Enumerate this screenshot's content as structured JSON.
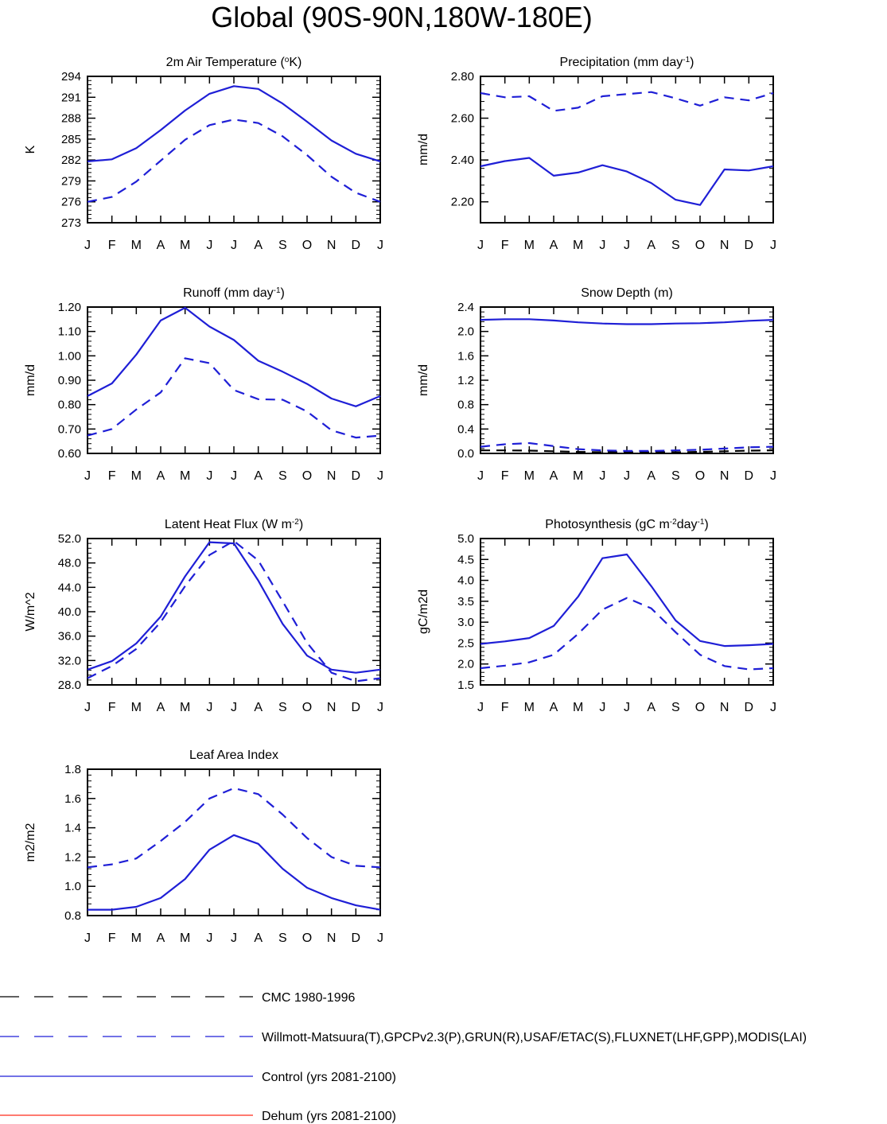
{
  "page_title": "Global (90S-90N,180W-180E)",
  "colors": {
    "series_cmc": "#000000",
    "series_obs": "#1f1fd6",
    "series_control": "#1f1fd6",
    "series_dehum": "#ff2a1a"
  },
  "chart_data": [
    {
      "type": "line",
      "title": "2m Air Temperature (",
      "title_sup": "o",
      "title_suffix": "K)",
      "ylabel": "K",
      "ylim": [
        273,
        294
      ],
      "yticks": [
        273,
        276,
        279,
        282,
        285,
        288,
        291,
        294
      ],
      "ytick_labels": [
        "273",
        "276",
        "279",
        "282",
        "285",
        "288",
        "291",
        "294"
      ],
      "x_labels": [
        "J",
        "F",
        "M",
        "A",
        "M",
        "J",
        "J",
        "A",
        "S",
        "O",
        "N",
        "D",
        "J"
      ],
      "series": [
        {
          "key": "obs",
          "values": [
            276.0,
            276.7,
            278.9,
            281.9,
            284.9,
            287.0,
            287.8,
            287.3,
            285.4,
            282.7,
            279.6,
            277.3,
            276.0
          ]
        },
        {
          "key": "control",
          "values": [
            281.8,
            282.1,
            283.7,
            286.3,
            289.1,
            291.5,
            292.6,
            292.2,
            290.1,
            287.5,
            284.8,
            282.9,
            281.8
          ]
        }
      ]
    },
    {
      "type": "line",
      "title": "Precipitation (mm day",
      "title_sup": "-1",
      "title_suffix": ")",
      "ylabel": "mm/d",
      "ylim": [
        2.1,
        2.8
      ],
      "yticks": [
        2.2,
        2.4,
        2.6,
        2.8
      ],
      "ytick_labels": [
        "2.20",
        "2.40",
        "2.60",
        "2.80"
      ],
      "x_labels": [
        "J",
        "F",
        "M",
        "A",
        "M",
        "J",
        "J",
        "A",
        "S",
        "O",
        "N",
        "D",
        "J"
      ],
      "series": [
        {
          "key": "obs",
          "values": [
            2.72,
            2.7,
            2.705,
            2.635,
            2.65,
            2.705,
            2.715,
            2.725,
            2.695,
            2.66,
            2.7,
            2.685,
            2.72
          ]
        },
        {
          "key": "control",
          "values": [
            2.37,
            2.395,
            2.41,
            2.325,
            2.34,
            2.375,
            2.345,
            2.29,
            2.21,
            2.185,
            2.355,
            2.35,
            2.37
          ]
        }
      ]
    },
    {
      "type": "line",
      "title": "Runoff (mm day",
      "title_sup": "-1",
      "title_suffix": ")",
      "ylabel": "mm/d",
      "ylim": [
        0.6,
        1.2
      ],
      "yticks": [
        0.6,
        0.7,
        0.8,
        0.9,
        1.0,
        1.1,
        1.2
      ],
      "ytick_labels": [
        "0.60",
        "0.70",
        "0.80",
        "0.90",
        "1.00",
        "1.10",
        "1.20"
      ],
      "x_labels": [
        "J",
        "F",
        "M",
        "A",
        "M",
        "J",
        "J",
        "A",
        "S",
        "O",
        "N",
        "D",
        "J"
      ],
      "series": [
        {
          "key": "obs",
          "values": [
            0.673,
            0.7,
            0.78,
            0.85,
            0.99,
            0.97,
            0.86,
            0.822,
            0.82,
            0.772,
            0.695,
            0.665,
            0.673
          ]
        },
        {
          "key": "control",
          "values": [
            0.835,
            0.887,
            1.005,
            1.145,
            1.197,
            1.12,
            1.065,
            0.98,
            0.935,
            0.885,
            0.825,
            0.793,
            0.835
          ]
        }
      ]
    },
    {
      "type": "line",
      "title": "Snow Depth (m)",
      "title_sup": "",
      "title_suffix": "",
      "ylabel": "mm/d",
      "ylim": [
        0.0,
        2.4
      ],
      "yticks": [
        0.0,
        0.4,
        0.8,
        1.2,
        1.6,
        2.0,
        2.4
      ],
      "ytick_labels": [
        "0.0",
        "0.4",
        "0.8",
        "1.2",
        "1.6",
        "2.0",
        "2.4"
      ],
      "x_labels": [
        "J",
        "F",
        "M",
        "A",
        "M",
        "J",
        "J",
        "A",
        "S",
        "O",
        "N",
        "D",
        "J"
      ],
      "series": [
        {
          "key": "cmc",
          "values": [
            0.05,
            0.05,
            0.045,
            0.035,
            0.025,
            0.02,
            0.02,
            0.02,
            0.02,
            0.025,
            0.035,
            0.045,
            0.05
          ]
        },
        {
          "key": "obs",
          "values": [
            0.11,
            0.15,
            0.17,
            0.12,
            0.07,
            0.05,
            0.04,
            0.04,
            0.05,
            0.06,
            0.08,
            0.1,
            0.11
          ]
        },
        {
          "key": "control",
          "values": [
            2.19,
            2.2,
            2.2,
            2.18,
            2.15,
            2.13,
            2.12,
            2.12,
            2.13,
            2.135,
            2.15,
            2.175,
            2.19
          ]
        }
      ]
    },
    {
      "type": "line",
      "title": "Latent Heat Flux (W m",
      "title_sup": "-2",
      "title_suffix": ")",
      "ylabel": "W/m^2",
      "ylim": [
        28.0,
        52.0
      ],
      "yticks": [
        28,
        32,
        36,
        40,
        44,
        48,
        52
      ],
      "ytick_labels": [
        "28.0",
        "32.0",
        "36.0",
        "40.0",
        "44.0",
        "48.0",
        "52.0"
      ],
      "x_labels": [
        "J",
        "F",
        "M",
        "A",
        "M",
        "J",
        "J",
        "A",
        "S",
        "O",
        "N",
        "D",
        "J"
      ],
      "series": [
        {
          "key": "obs",
          "values": [
            29.1,
            31.1,
            33.9,
            38.3,
            44.2,
            49.3,
            51.6,
            48.4,
            41.7,
            34.9,
            30.0,
            28.6,
            29.1
          ]
        },
        {
          "key": "control",
          "values": [
            30.5,
            31.9,
            34.8,
            39.2,
            45.8,
            51.4,
            51.2,
            45.1,
            38.0,
            32.8,
            30.5,
            30.0,
            30.5
          ]
        }
      ]
    },
    {
      "type": "line",
      "title": "Photosynthesis (gC m",
      "title_sup": "-2",
      "title_suffix": "day",
      "title_sup2": "-1",
      "title_suffix2": ")",
      "ylabel": "gC/m2d",
      "ylim": [
        1.5,
        5.0
      ],
      "yticks": [
        1.5,
        2.0,
        2.5,
        3.0,
        3.5,
        4.0,
        4.5,
        5.0
      ],
      "ytick_labels": [
        "1.5",
        "2.0",
        "2.5",
        "3.0",
        "3.5",
        "4.0",
        "4.5",
        "5.0"
      ],
      "x_labels": [
        "J",
        "F",
        "M",
        "A",
        "M",
        "J",
        "J",
        "A",
        "S",
        "O",
        "N",
        "D",
        "J"
      ],
      "series": [
        {
          "key": "obs",
          "values": [
            1.9,
            1.96,
            2.04,
            2.22,
            2.72,
            3.3,
            3.58,
            3.33,
            2.76,
            2.22,
            1.95,
            1.87,
            1.9
          ]
        },
        {
          "key": "control",
          "values": [
            2.48,
            2.54,
            2.62,
            2.91,
            3.61,
            4.53,
            4.62,
            3.86,
            3.04,
            2.55,
            2.43,
            2.45,
            2.48
          ]
        }
      ]
    },
    {
      "type": "line",
      "title": "Leaf Area Index",
      "title_sup": "",
      "title_suffix": "",
      "ylabel": "m2/m2",
      "ylim": [
        0.8,
        1.8
      ],
      "yticks": [
        0.8,
        1.0,
        1.2,
        1.4,
        1.6,
        1.8
      ],
      "ytick_labels": [
        "0.8",
        "1.0",
        "1.2",
        "1.4",
        "1.6",
        "1.8"
      ],
      "x_labels": [
        "J",
        "F",
        "M",
        "A",
        "M",
        "J",
        "J",
        "A",
        "S",
        "O",
        "N",
        "D",
        "J"
      ],
      "series": [
        {
          "key": "obs",
          "values": [
            1.13,
            1.15,
            1.19,
            1.31,
            1.44,
            1.6,
            1.67,
            1.63,
            1.49,
            1.33,
            1.2,
            1.14,
            1.13
          ]
        },
        {
          "key": "control",
          "values": [
            0.84,
            0.84,
            0.86,
            0.92,
            1.05,
            1.25,
            1.35,
            1.29,
            1.12,
            0.99,
            0.92,
            0.87,
            0.84
          ]
        }
      ]
    }
  ],
  "legend": [
    {
      "key": "cmc",
      "label": "CMC 1980-1996",
      "style": "dashed"
    },
    {
      "key": "obs",
      "label": "Willmott-Matsuura(T),GPCPv2.3(P),GRUN(R),USAF/ETAC(S),FLUXNET(LHF,GPP),MODIS(LAI)",
      "style": "dashed"
    },
    {
      "key": "control",
      "label": "Control (yrs 2081-2100)",
      "style": "solid"
    },
    {
      "key": "dehum",
      "label": "Dehum (yrs 2081-2100)",
      "style": "solid"
    }
  ]
}
